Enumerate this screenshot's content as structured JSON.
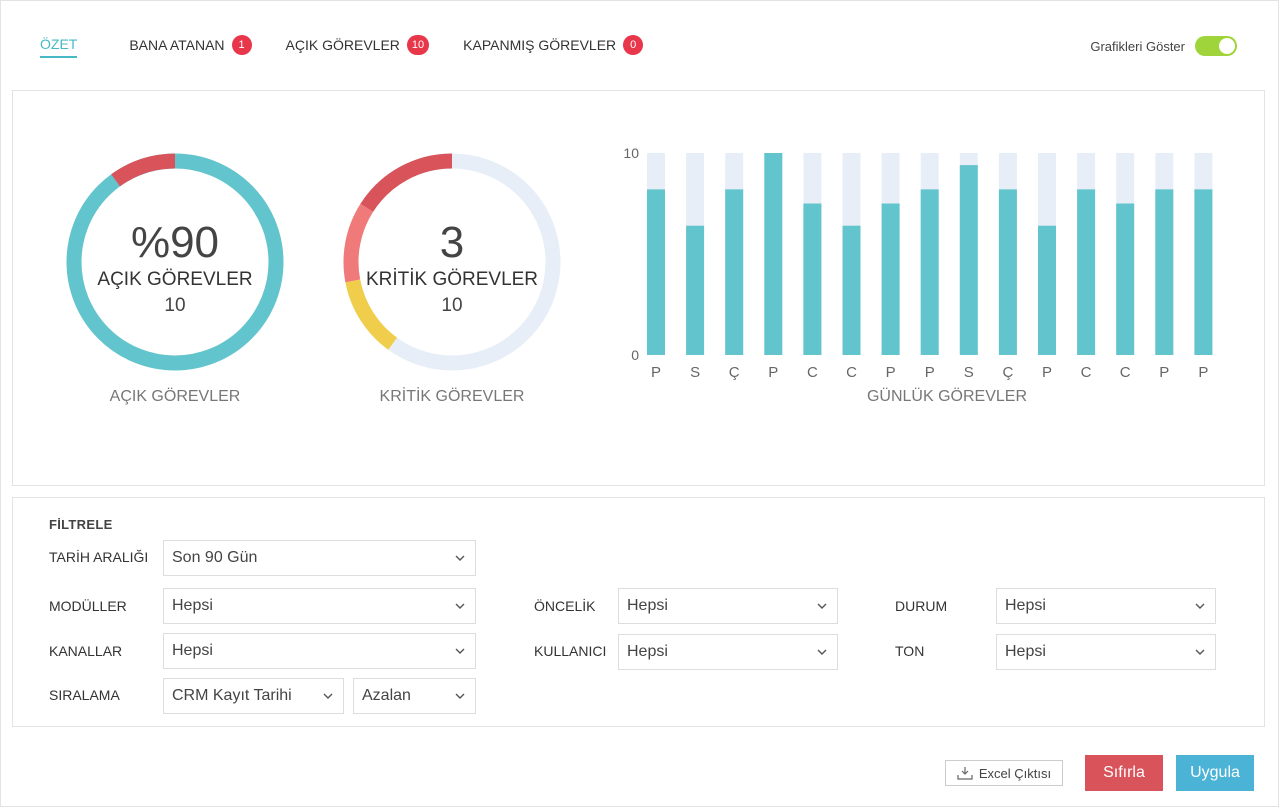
{
  "tabs": [
    {
      "label": "ÖZET",
      "badge": null,
      "active": true
    },
    {
      "label": "BANA ATANAN",
      "badge": "1",
      "active": false
    },
    {
      "label": "AÇIK GÖREVLER",
      "badge": "10",
      "active": false
    },
    {
      "label": "KAPANMIŞ GÖREVLER",
      "badge": "0",
      "active": false
    }
  ],
  "toggle": {
    "label": "Grafikleri Göster",
    "on": true,
    "color": "#9fd53a"
  },
  "open_tasks": {
    "big": "%90",
    "label": "AÇIK GÖREVLER",
    "count": "10",
    "caption": "AÇIK GÖREVLER",
    "percent": 90,
    "colors": {
      "main": "#62c4cc",
      "rest": "#d9535a"
    }
  },
  "critical_tasks": {
    "big": "3",
    "label": "KRİTİK GÖREVLER",
    "count": "10",
    "caption": "KRİTİK GÖREVLER",
    "segments": [
      {
        "fraction": 0.12,
        "color": "#f0cd4a"
      },
      {
        "fraction": 0.12,
        "color": "#f07a7a"
      },
      {
        "fraction": 0.16,
        "color": "#d9535a"
      }
    ],
    "track_color": "#e8eef7"
  },
  "chart_data": {
    "type": "bar",
    "categories": [
      "P",
      "S",
      "Ç",
      "P",
      "C",
      "C",
      "P",
      "P",
      "S",
      "Ç",
      "P",
      "C",
      "C",
      "P",
      "P"
    ],
    "values": [
      8.2,
      6.4,
      8.2,
      10,
      7.5,
      6.4,
      7.5,
      8.2,
      9.4,
      8.2,
      6.4,
      8.2,
      7.5,
      8.2,
      8.2
    ],
    "ylim": [
      0,
      10
    ],
    "yticks": [
      "0",
      "10"
    ],
    "xlabel": "GÜNLÜK GÖREVLER",
    "colors": {
      "bar": "#62c4cc",
      "track": "#e8eef7"
    }
  },
  "filters": {
    "title": "FİLTRELE",
    "date_range": {
      "label": "TARİH ARALIĞI",
      "value": "Son 90 Gün"
    },
    "modules": {
      "label": "MODÜLLER",
      "value": "Hepsi"
    },
    "channels": {
      "label": "KANALLAR",
      "value": "Hepsi"
    },
    "sorting": {
      "label": "SIRALAMA",
      "value": "CRM Kayıt Tarihi",
      "order": "Azalan"
    },
    "priority": {
      "label": "ÖNCELİK",
      "value": "Hepsi"
    },
    "user": {
      "label": "KULLANICI",
      "value": "Hepsi"
    },
    "status": {
      "label": "DURUM",
      "value": "Hepsi"
    },
    "tone": {
      "label": "TON",
      "value": "Hepsi"
    }
  },
  "buttons": {
    "excel": "Excel Çıktısı",
    "reset": "Sıfırla",
    "apply": "Uygula"
  }
}
